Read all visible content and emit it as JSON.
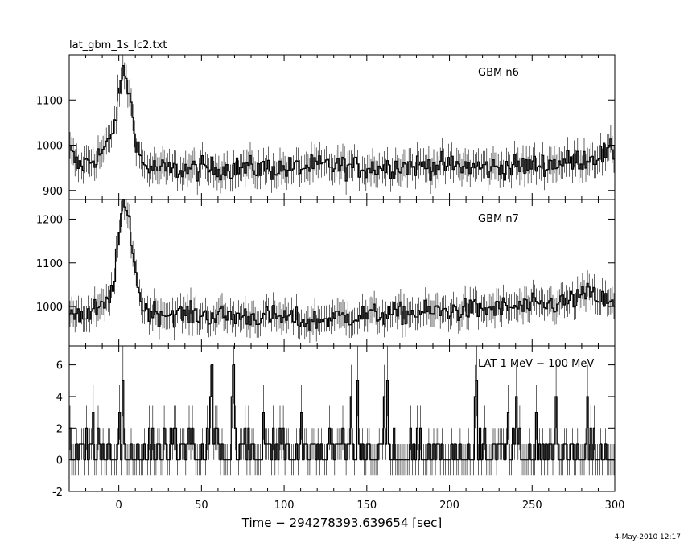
{
  "file_title": "lat_gbm_1s_lc2.txt",
  "x_axis_label": "Time − 294278393.639654 [sec]",
  "date_stamp": "4-May-2010 12:17",
  "chart_data": [
    {
      "type": "line",
      "label": "GBM n6",
      "xlim": [
        -30,
        300
      ],
      "ylim": [
        880,
        1200
      ],
      "yticks": [
        900,
        1000,
        1100
      ],
      "xticks": [
        0,
        50,
        100,
        150,
        200,
        250,
        300
      ],
      "baseline": 948,
      "peak": {
        "x": 3,
        "y": 1170
      },
      "points": [
        [
          -30,
          990
        ],
        [
          -25,
          955
        ],
        [
          -20,
          960
        ],
        [
          -15,
          970
        ],
        [
          -10,
          985
        ],
        [
          -5,
          1010
        ],
        [
          -2,
          1060
        ],
        [
          0,
          1110
        ],
        [
          3,
          1170
        ],
        [
          6,
          1120
        ],
        [
          9,
          1050
        ],
        [
          12,
          985
        ],
        [
          15,
          955
        ],
        [
          20,
          950
        ],
        [
          30,
          945
        ],
        [
          50,
          948
        ],
        [
          75,
          950
        ],
        [
          100,
          948
        ],
        [
          125,
          955
        ],
        [
          150,
          950
        ],
        [
          175,
          955
        ],
        [
          200,
          955
        ],
        [
          225,
          950
        ],
        [
          250,
          955
        ],
        [
          275,
          965
        ],
        [
          300,
          985
        ]
      ]
    },
    {
      "type": "line",
      "label": "GBM n7",
      "xlim": [
        -30,
        300
      ],
      "ylim": [
        910,
        1245
      ],
      "yticks": [
        1000,
        1100,
        1200
      ],
      "xticks": [
        0,
        50,
        100,
        150,
        200,
        250,
        300
      ],
      "baseline": 985,
      "peak": {
        "x": 3,
        "y": 1235
      },
      "points": [
        [
          -30,
          995
        ],
        [
          -25,
          985
        ],
        [
          -20,
          975
        ],
        [
          -15,
          990
        ],
        [
          -10,
          995
        ],
        [
          -5,
          1020
        ],
        [
          -2,
          1090
        ],
        [
          0,
          1160
        ],
        [
          3,
          1235
        ],
        [
          6,
          1200
        ],
        [
          9,
          1120
        ],
        [
          12,
          1035
        ],
        [
          15,
          995
        ],
        [
          25,
          985
        ],
        [
          50,
          980
        ],
        [
          75,
          978
        ],
        [
          100,
          975
        ],
        [
          115,
          965
        ],
        [
          130,
          975
        ],
        [
          150,
          980
        ],
        [
          175,
          985
        ],
        [
          200,
          990
        ],
        [
          225,
          995
        ],
        [
          250,
          1000
        ],
        [
          270,
          1010
        ],
        [
          285,
          1030
        ],
        [
          300,
          1000
        ]
      ]
    },
    {
      "type": "line",
      "label": "LAT 1 MeV − 100 MeV",
      "xlim": [
        -30,
        300
      ],
      "ylim": [
        -2,
        7.2
      ],
      "yticks": [
        -2,
        0,
        2,
        4,
        6
      ],
      "xticks": [
        0,
        50,
        100,
        150,
        200,
        250,
        300
      ],
      "peaks": [
        [
          0,
          3
        ],
        [
          2,
          5
        ],
        [
          55,
          4
        ],
        [
          56,
          6
        ],
        [
          68,
          4
        ],
        [
          69,
          6
        ],
        [
          140,
          4
        ],
        [
          144,
          5
        ],
        [
          160,
          4
        ],
        [
          162,
          5
        ],
        [
          215,
          4
        ],
        [
          216,
          5
        ],
        [
          240,
          4
        ],
        [
          264,
          4
        ],
        [
          283,
          4
        ]
      ]
    }
  ]
}
